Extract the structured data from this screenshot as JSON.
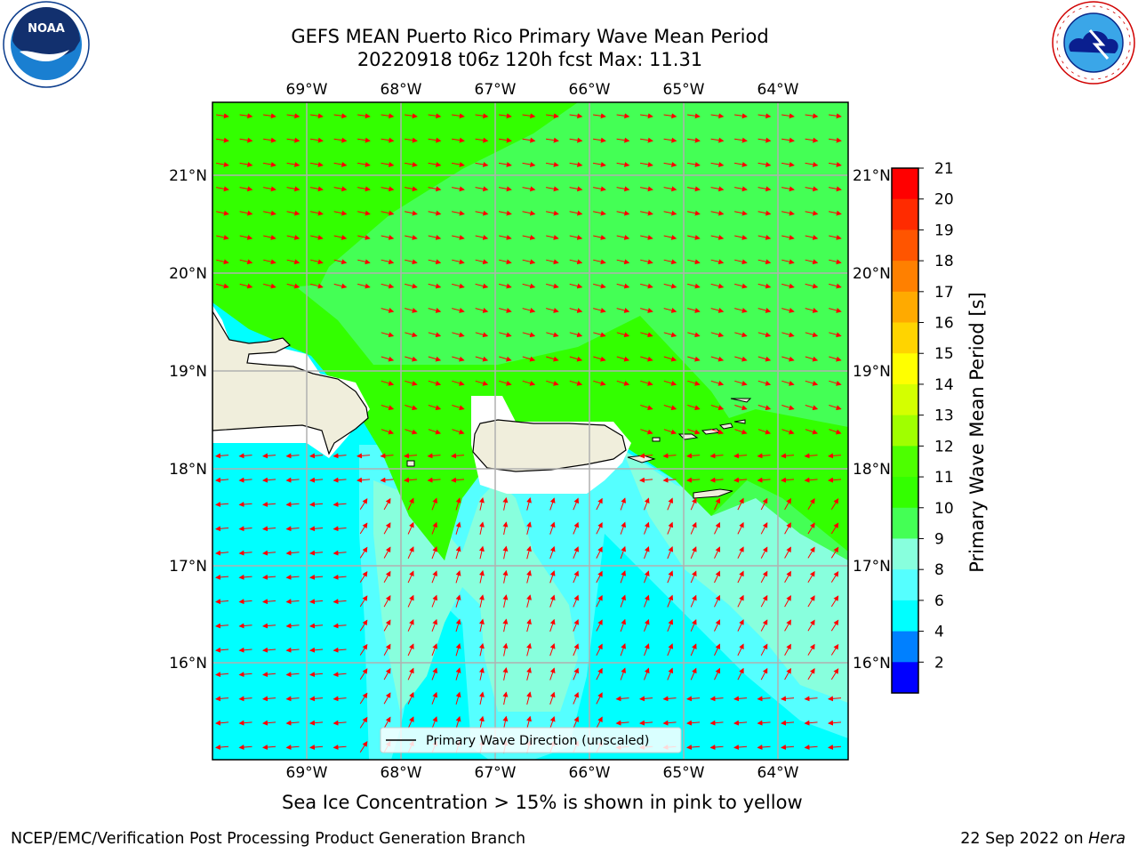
{
  "title_line1": "GEFS MEAN Puerto Rico Primary Wave Mean Period",
  "title_line2": "20220918 t06z 120h fcst   Max: 11.31",
  "logos": {
    "left": "NOAA",
    "right": "NATIONAL WEATHER SERVICE"
  },
  "lon_labels": [
    "69°W",
    "68°W",
    "67°W",
    "66°W",
    "65°W",
    "64°W"
  ],
  "lat_labels": [
    "21°N",
    "20°N",
    "19°N",
    "18°N",
    "17°N",
    "16°N"
  ],
  "legend_label": "Primary Wave Direction (unscaled)",
  "colorbar": {
    "label": "Primary Wave Mean Period [s]",
    "ticks": [
      "21",
      "20",
      "19",
      "18",
      "17",
      "16",
      "15",
      "14",
      "13",
      "12",
      "11",
      "10",
      "9",
      "8",
      "6",
      "4",
      "2"
    ],
    "colors": [
      "#ff0000",
      "#ff2b00",
      "#ff5500",
      "#ff8000",
      "#ffaa00",
      "#ffd400",
      "#ffff00",
      "#d4ff00",
      "#a0ff00",
      "#4dff00",
      "#33ff00",
      "#44ff55",
      "#88ffdd",
      "#55ffff",
      "#00ffff",
      "#0080ff",
      "#0000ff"
    ]
  },
  "subtitle": "Sea Ice Concentration > 15% is shown in pink to yellow",
  "footer_left": "NCEP/EMC/Verification Post Processing Product Generation Branch",
  "footer_right_date": "22 Sep 2022 on ",
  "footer_right_host": "Hera"
}
